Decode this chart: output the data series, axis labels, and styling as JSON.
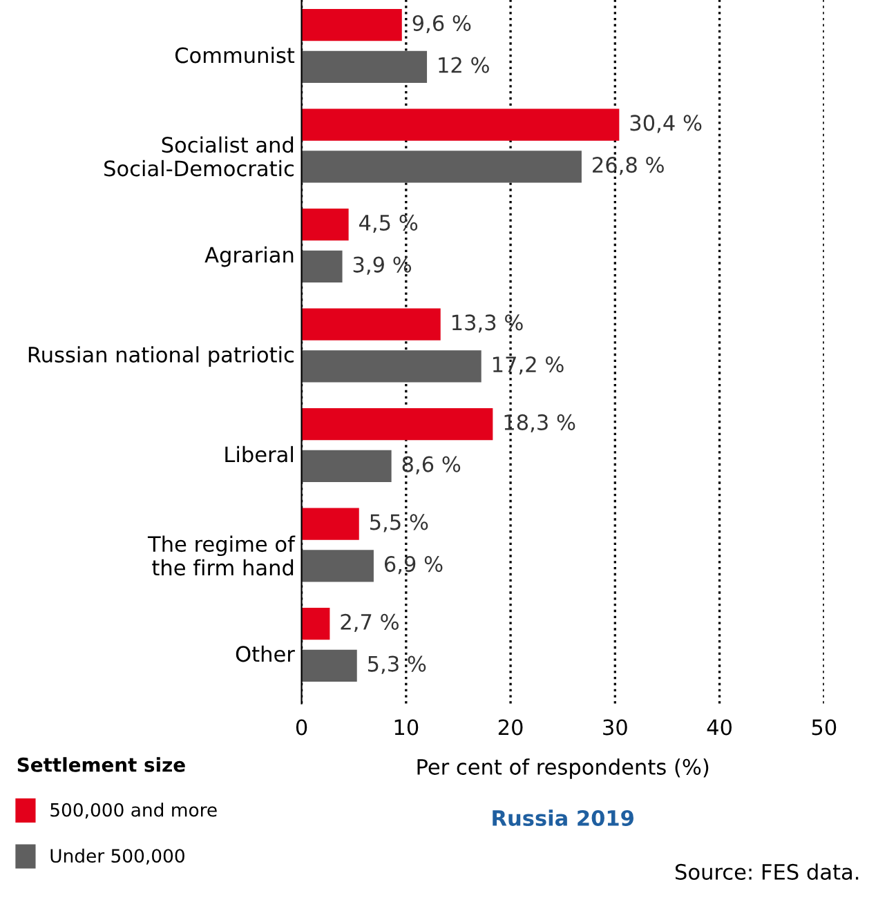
{
  "chart_data": {
    "type": "bar",
    "orientation": "horizontal",
    "title": "Russia 2019",
    "xlabel": "Per cent of respondents (%)",
    "legend_title": "Settlement size",
    "categories": [
      "Communist",
      "Socialist and\nSocial-Democratic",
      "Agrarian",
      "Russian national patriotic",
      "Liberal",
      "The regime of\nthe firm hand",
      "Other"
    ],
    "series": [
      {
        "name": "500,000 and more",
        "color": "#e3001b",
        "values": [
          9.6,
          30.4,
          4.5,
          13.3,
          18.3,
          5.5,
          2.7
        ],
        "value_labels": [
          "9,6 %",
          "30,4 %",
          "4,5 %",
          "13,3 %",
          "18,3 %",
          "5,5 %",
          "2,7 %"
        ]
      },
      {
        "name": "Under 500,000",
        "color": "#5f5f5f",
        "values": [
          12,
          26.8,
          3.9,
          17.2,
          8.6,
          6.9,
          5.3
        ],
        "value_labels": [
          "12 %",
          "26,8 %",
          "3,9 %",
          "17,2 %",
          "8,6 %",
          "6,9 %",
          "5,3 %"
        ]
      }
    ],
    "xlim": [
      0,
      50
    ],
    "xticks": [
      0,
      10,
      20,
      30,
      40,
      50
    ],
    "grid": "x",
    "legend": "bottom left",
    "annotations": [
      "Source: FES data."
    ]
  }
}
